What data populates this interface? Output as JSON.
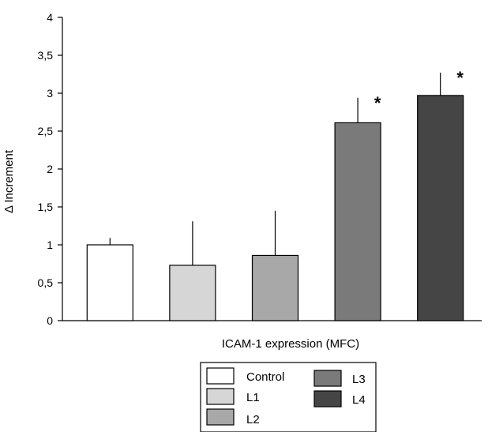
{
  "chart_data": {
    "type": "bar",
    "categories": [
      "Control",
      "L1",
      "L2",
      "L3",
      "L4"
    ],
    "values": [
      1.0,
      0.73,
      0.86,
      2.61,
      2.97
    ],
    "error_upper": [
      1.09,
      1.31,
      1.45,
      2.94,
      3.27
    ],
    "significance": [
      "",
      "",
      "",
      "*",
      "*"
    ],
    "colors": [
      "#ffffff",
      "#d6d6d6",
      "#a8a8a8",
      "#7a7a7a",
      "#454545"
    ],
    "xlabel": "ICAM-1 expression (MFC)",
    "ylabel": "Δ Increment",
    "ylim": [
      0,
      4
    ],
    "yticks": [
      "0",
      "0,5",
      "1",
      "1,5",
      "2",
      "2,5",
      "3",
      "3,5",
      "4"
    ],
    "grid": false,
    "legend": {
      "position": "bottom",
      "entries": [
        "Control",
        "L1",
        "L2",
        "L3",
        "L4"
      ]
    }
  }
}
